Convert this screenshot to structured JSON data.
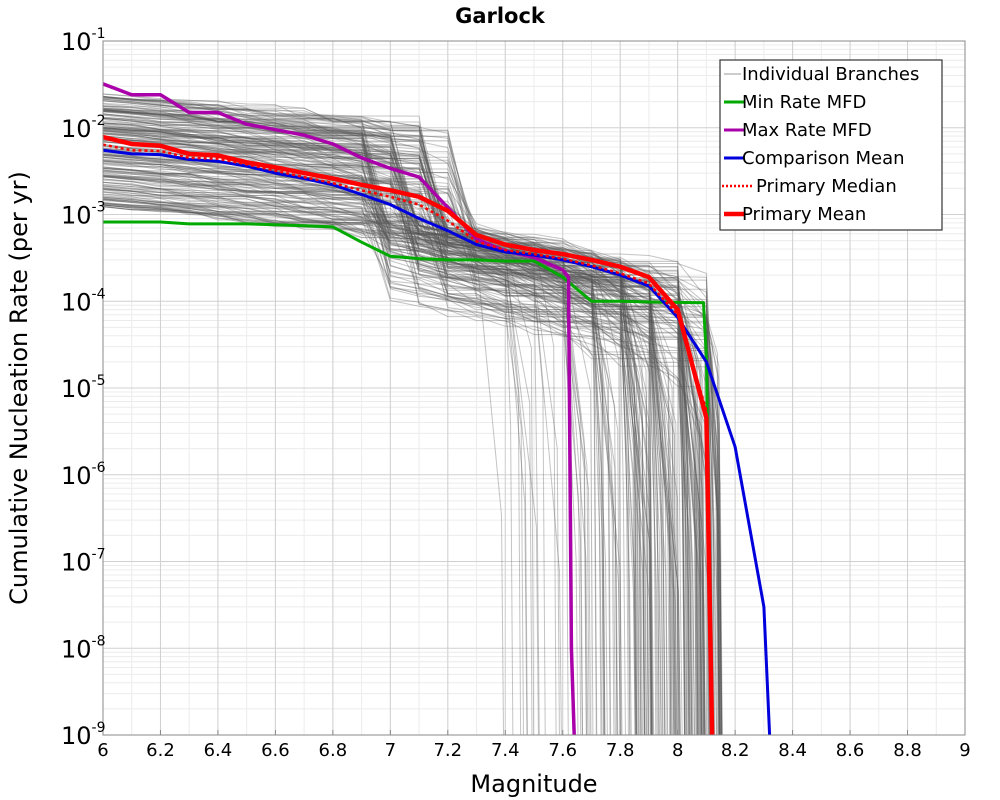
{
  "chart_data": {
    "type": "line",
    "title": "Garlock",
    "xlabel": "Magnitude",
    "ylabel": "Cumulative Nucleation Rate (per yr)",
    "xlim": [
      6,
      9
    ],
    "ylim": [
      1e-09,
      0.1
    ],
    "yscale": "log",
    "grid": true,
    "legend_position": "top-right",
    "x_ticks": [
      "6",
      "6.2",
      "6.4",
      "6.6",
      "6.8",
      "7",
      "7.2",
      "7.4",
      "7.6",
      "7.8",
      "8",
      "8.2",
      "8.4",
      "8.6",
      "8.8",
      "9"
    ],
    "y_ticks": [
      {
        "base": "10",
        "exp": "-1"
      },
      {
        "base": "10",
        "exp": "-2"
      },
      {
        "base": "10",
        "exp": "-3"
      },
      {
        "base": "10",
        "exp": "-4"
      },
      {
        "base": "10",
        "exp": "-5"
      },
      {
        "base": "10",
        "exp": "-6"
      },
      {
        "base": "10",
        "exp": "-7"
      },
      {
        "base": "10",
        "exp": "-8"
      },
      {
        "base": "10",
        "exp": "-9"
      }
    ],
    "legend": [
      {
        "label": "Individual Branches",
        "color": "#999999",
        "style": "thin"
      },
      {
        "label": "Min Rate MFD",
        "color": "#00aa00",
        "style": "solid"
      },
      {
        "label": "Max Rate MFD",
        "color": "#aa00aa",
        "style": "solid"
      },
      {
        "label": "Comparison Mean",
        "color": "#0000dd",
        "style": "solid"
      },
      {
        "label": "Primary Median",
        "color": "#ff0000",
        "style": "dotted"
      },
      {
        "label": "Primary Mean",
        "color": "#ff0000",
        "style": "thick"
      }
    ],
    "series": [
      {
        "name": "Min Rate MFD",
        "color": "#00aa00",
        "points": [
          [
            6.0,
            0.00082
          ],
          [
            6.1,
            0.00082
          ],
          [
            6.2,
            0.00082
          ],
          [
            6.3,
            0.00078
          ],
          [
            6.4,
            0.00078
          ],
          [
            6.5,
            0.00078
          ],
          [
            6.6,
            0.00076
          ],
          [
            6.7,
            0.00074
          ],
          [
            6.8,
            0.00072
          ],
          [
            6.9,
            0.00048
          ],
          [
            7.0,
            0.00033
          ],
          [
            7.1,
            0.00031
          ],
          [
            7.2,
            0.0003
          ],
          [
            7.3,
            0.0003
          ],
          [
            7.4,
            0.00029
          ],
          [
            7.5,
            0.00029
          ],
          [
            7.6,
            0.00019
          ],
          [
            7.7,
            0.0001
          ],
          [
            7.8,
            0.0001
          ],
          [
            7.9,
            9.8e-05
          ],
          [
            8.0,
            9.7e-05
          ],
          [
            8.09,
            9.6e-05
          ],
          [
            8.1,
            2.2e-05
          ],
          [
            8.12,
            1e-09
          ]
        ]
      },
      {
        "name": "Max Rate MFD",
        "color": "#aa00aa",
        "points": [
          [
            6.0,
            0.032
          ],
          [
            6.1,
            0.024
          ],
          [
            6.2,
            0.024
          ],
          [
            6.3,
            0.015
          ],
          [
            6.4,
            0.015
          ],
          [
            6.5,
            0.011
          ],
          [
            6.6,
            0.0095
          ],
          [
            6.7,
            0.0082
          ],
          [
            6.8,
            0.0065
          ],
          [
            6.9,
            0.0045
          ],
          [
            7.0,
            0.0034
          ],
          [
            7.1,
            0.0027
          ],
          [
            7.2,
            0.0012
          ],
          [
            7.3,
            0.00052
          ],
          [
            7.4,
            0.00038
          ],
          [
            7.5,
            0.00032
          ],
          [
            7.6,
            0.00023
          ],
          [
            7.62,
            0.00019
          ],
          [
            7.63,
            1e-08
          ],
          [
            7.64,
            1e-09
          ]
        ]
      },
      {
        "name": "Comparison Mean",
        "color": "#0000dd",
        "points": [
          [
            6.0,
            0.0055
          ],
          [
            6.1,
            0.005
          ],
          [
            6.2,
            0.0049
          ],
          [
            6.3,
            0.0043
          ],
          [
            6.4,
            0.0041
          ],
          [
            6.5,
            0.0036
          ],
          [
            6.6,
            0.003
          ],
          [
            6.7,
            0.0026
          ],
          [
            6.8,
            0.0022
          ],
          [
            6.9,
            0.0017
          ],
          [
            7.0,
            0.0013
          ],
          [
            7.1,
            0.0009
          ],
          [
            7.2,
            0.00065
          ],
          [
            7.3,
            0.00045
          ],
          [
            7.4,
            0.00037
          ],
          [
            7.5,
            0.00034
          ],
          [
            7.6,
            0.0003
          ],
          [
            7.7,
            0.00025
          ],
          [
            7.8,
            0.0002
          ],
          [
            7.9,
            0.00015
          ],
          [
            8.0,
            6.5e-05
          ],
          [
            8.1,
            2e-05
          ],
          [
            8.2,
            2.1e-06
          ],
          [
            8.3,
            3e-08
          ],
          [
            8.32,
            1e-09
          ]
        ]
      },
      {
        "name": "Primary Median",
        "color": "#ff0000",
        "points": [
          [
            6.0,
            0.0064
          ],
          [
            6.1,
            0.0055
          ],
          [
            6.2,
            0.0054
          ],
          [
            6.3,
            0.0045
          ],
          [
            6.4,
            0.0044
          ],
          [
            6.5,
            0.0038
          ],
          [
            6.6,
            0.0032
          ],
          [
            6.7,
            0.0027
          ],
          [
            6.8,
            0.0023
          ],
          [
            6.9,
            0.0019
          ],
          [
            7.0,
            0.0016
          ],
          [
            7.1,
            0.0013
          ],
          [
            7.2,
            0.00085
          ],
          [
            7.3,
            0.00049
          ],
          [
            7.4,
            0.00039
          ],
          [
            7.5,
            0.00035
          ],
          [
            7.6,
            0.00031
          ],
          [
            7.7,
            0.00026
          ],
          [
            7.8,
            0.00021
          ],
          [
            7.9,
            0.00016
          ],
          [
            8.0,
            7e-05
          ],
          [
            8.1,
            5.5e-06
          ],
          [
            8.12,
            1e-09
          ]
        ]
      },
      {
        "name": "Primary Mean",
        "color": "#ff0000",
        "points": [
          [
            6.0,
            0.0078
          ],
          [
            6.1,
            0.0065
          ],
          [
            6.2,
            0.0062
          ],
          [
            6.3,
            0.005
          ],
          [
            6.4,
            0.0048
          ],
          [
            6.5,
            0.004
          ],
          [
            6.6,
            0.0035
          ],
          [
            6.7,
            0.003
          ],
          [
            6.8,
            0.0026
          ],
          [
            6.9,
            0.0022
          ],
          [
            7.0,
            0.0019
          ],
          [
            7.1,
            0.0016
          ],
          [
            7.2,
            0.0011
          ],
          [
            7.3,
            0.00058
          ],
          [
            7.4,
            0.00045
          ],
          [
            7.5,
            0.00039
          ],
          [
            7.6,
            0.00035
          ],
          [
            7.7,
            0.0003
          ],
          [
            7.8,
            0.00025
          ],
          [
            7.9,
            0.00019
          ],
          [
            8.0,
            8e-05
          ],
          [
            8.1,
            4.5e-06
          ],
          [
            8.12,
            1e-09
          ]
        ]
      }
    ],
    "branches": {
      "name": "Individual Branches",
      "color": "#555555",
      "count": 220,
      "rate_at_6_min": 0.0012,
      "rate_at_6_max": 0.025,
      "cutoff_magnitude_min": 7.3,
      "cutoff_magnitude_max": 8.14
    }
  }
}
